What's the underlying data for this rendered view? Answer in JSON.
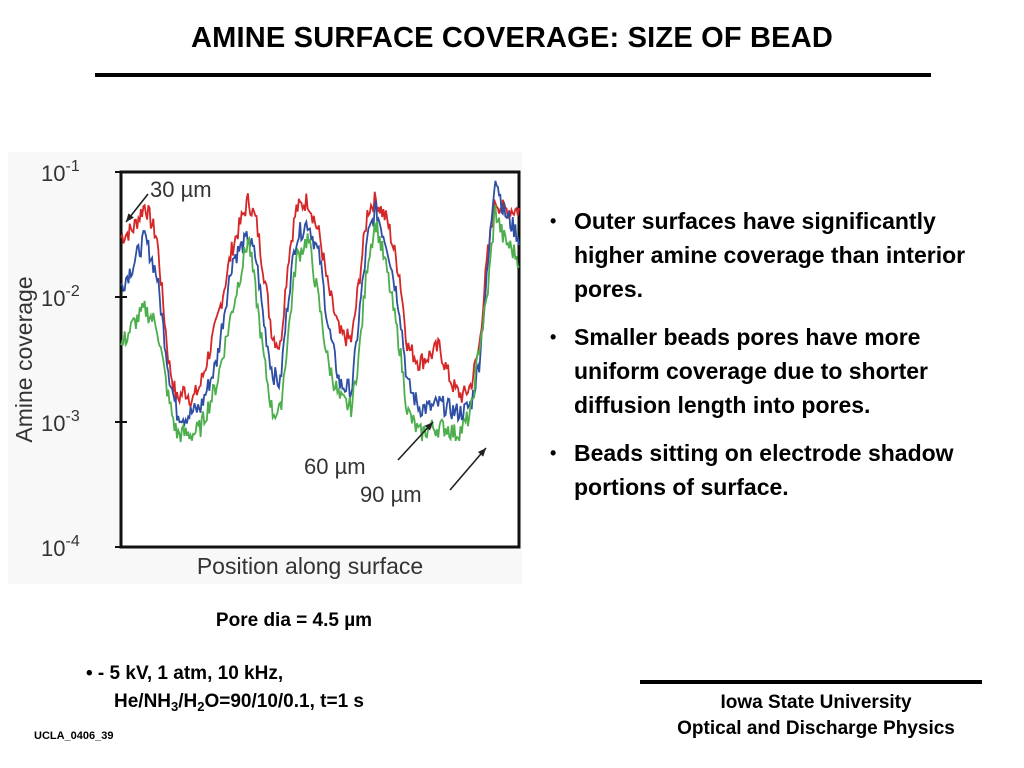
{
  "slide": {
    "title": "AMINE SURFACE COVERAGE: SIZE OF BEAD",
    "caption": "Pore dia = 4.5 µm",
    "conditions": {
      "line1": "• - 5 kV, 1 atm, 10 kHz,",
      "line2_parts": [
        "He/NH",
        "3",
        "/H",
        "2",
        "O=90/10/0.1, t=1 s"
      ]
    },
    "bullets": [
      "Outer surfaces have significantly higher amine coverage than interior pores.",
      "Smaller beads pores have more uniform coverage due to shorter diffusion length into pores.",
      "Beads sitting on electrode shadow portions of surface."
    ],
    "bullet_symbol": "•",
    "footer": {
      "line1": "Iowa State University",
      "line2": "Optical and Discharge Physics"
    },
    "slide_id": "UCLA_0406_39"
  },
  "chart_data": {
    "type": "line",
    "title": "",
    "xlabel": "Position along surface",
    "ylabel": "Amine coverage",
    "yscale": "log",
    "ylim": [
      0.0001,
      0.1
    ],
    "xlim": [
      0,
      1
    ],
    "ytick_labels": [
      {
        "base": "10",
        "exp": "-1",
        "value": 0.1
      },
      {
        "base": "10",
        "exp": "-2",
        "value": 0.01
      },
      {
        "base": "10",
        "exp": "-3",
        "value": 0.001
      },
      {
        "base": "10",
        "exp": "-4",
        "value": 0.0001
      }
    ],
    "grid": false,
    "annotations": [
      "30 µm",
      "60 µm",
      "90 µm"
    ],
    "series": [
      {
        "name": "30 µm",
        "color": "#d62728",
        "x": [
          0.0,
          0.03,
          0.06,
          0.09,
          0.12,
          0.14,
          0.16,
          0.18,
          0.2,
          0.24,
          0.28,
          0.32,
          0.34,
          0.36,
          0.38,
          0.4,
          0.42,
          0.44,
          0.47,
          0.5,
          0.52,
          0.55,
          0.58,
          0.6,
          0.62,
          0.64,
          0.67,
          0.7,
          0.72,
          0.75,
          0.78,
          0.8,
          0.82,
          0.84,
          0.86,
          0.88,
          0.9,
          0.92,
          0.94,
          0.96,
          1.0
        ],
        "y": [
          0.03,
          0.035,
          0.055,
          0.03,
          0.003,
          0.0015,
          0.0018,
          0.0015,
          0.002,
          0.006,
          0.025,
          0.06,
          0.04,
          0.015,
          0.005,
          0.004,
          0.02,
          0.05,
          0.06,
          0.03,
          0.012,
          0.005,
          0.0045,
          0.015,
          0.05,
          0.06,
          0.04,
          0.015,
          0.004,
          0.003,
          0.0035,
          0.004,
          0.0025,
          0.0018,
          0.0016,
          0.002,
          0.004,
          0.02,
          0.06,
          0.05,
          0.05
        ]
      },
      {
        "name": "60 µm",
        "color": "#2e4fa3",
        "x": [
          0.0,
          0.03,
          0.06,
          0.09,
          0.12,
          0.14,
          0.16,
          0.18,
          0.2,
          0.24,
          0.28,
          0.32,
          0.34,
          0.36,
          0.38,
          0.4,
          0.42,
          0.44,
          0.47,
          0.5,
          0.52,
          0.55,
          0.58,
          0.6,
          0.62,
          0.64,
          0.67,
          0.7,
          0.72,
          0.75,
          0.78,
          0.8,
          0.82,
          0.84,
          0.86,
          0.88,
          0.9,
          0.92,
          0.94,
          0.96,
          1.0
        ],
        "y": [
          0.012,
          0.018,
          0.03,
          0.015,
          0.0025,
          0.0012,
          0.0011,
          0.0012,
          0.0013,
          0.003,
          0.02,
          0.03,
          0.02,
          0.006,
          0.0025,
          0.002,
          0.01,
          0.03,
          0.04,
          0.02,
          0.006,
          0.002,
          0.0018,
          0.008,
          0.03,
          0.05,
          0.025,
          0.008,
          0.002,
          0.0013,
          0.0013,
          0.0014,
          0.0013,
          0.0012,
          0.0012,
          0.0014,
          0.003,
          0.015,
          0.1,
          0.05,
          0.03
        ]
      },
      {
        "name": "90 µm",
        "color": "#4cae4c",
        "x": [
          0.0,
          0.03,
          0.06,
          0.09,
          0.12,
          0.14,
          0.16,
          0.18,
          0.2,
          0.24,
          0.28,
          0.32,
          0.34,
          0.36,
          0.38,
          0.4,
          0.42,
          0.44,
          0.47,
          0.5,
          0.52,
          0.55,
          0.58,
          0.6,
          0.62,
          0.64,
          0.67,
          0.7,
          0.72,
          0.75,
          0.78,
          0.8,
          0.82,
          0.84,
          0.86,
          0.88,
          0.9,
          0.92,
          0.94,
          0.96,
          1.0
        ],
        "y": [
          0.004,
          0.006,
          0.008,
          0.006,
          0.0015,
          0.0008,
          0.0008,
          0.0008,
          0.0009,
          0.002,
          0.008,
          0.03,
          0.01,
          0.003,
          0.0012,
          0.0012,
          0.005,
          0.02,
          0.03,
          0.008,
          0.003,
          0.0015,
          0.0013,
          0.004,
          0.02,
          0.04,
          0.015,
          0.004,
          0.0012,
          0.0008,
          0.0009,
          0.0009,
          0.0009,
          0.0008,
          0.0009,
          0.0012,
          0.004,
          0.01,
          0.05,
          0.03,
          0.02
        ]
      }
    ]
  }
}
